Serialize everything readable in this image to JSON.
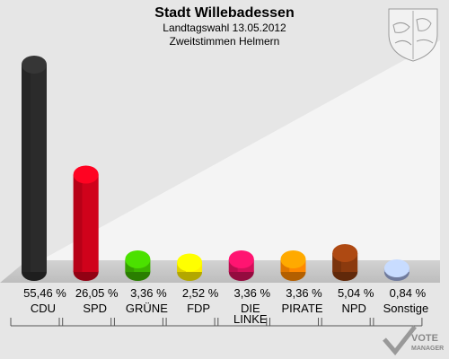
{
  "header": {
    "title": "Stadt Willebadessen",
    "subtitle1": "Landtagswahl 13.05.2012",
    "subtitle2": "Zweitstimmen Helmern"
  },
  "watermark": {
    "line1": "VOTE",
    "line2": "MANAGER"
  },
  "chart_data": {
    "type": "bar",
    "title": "Stadt Willebadessen",
    "subtitle": "Landtagswahl 13.05.2012 – Zweitstimmen Helmern",
    "categories": [
      "CDU",
      "SPD",
      "GRÜNE",
      "FDP",
      "DIE LINKE",
      "PIRATE",
      "NPD",
      "Sonstige"
    ],
    "values": [
      55.46,
      26.05,
      3.36,
      2.52,
      3.36,
      3.36,
      5.04,
      0.84
    ],
    "value_labels": [
      "55,46 %",
      "26,05 %",
      "3,36 %",
      "2,52 %",
      "3,36 %",
      "3,36 %",
      "5,04 %",
      "0,84 %"
    ],
    "colors": [
      "#2b2b2b",
      "#d0021b",
      "#3cb400",
      "#ffee00",
      "#d4105a",
      "#ff8800",
      "#8b3a0e",
      "#a0b0e0"
    ],
    "ylim": [
      0,
      55.46
    ],
    "grid": false,
    "legend": "none"
  }
}
